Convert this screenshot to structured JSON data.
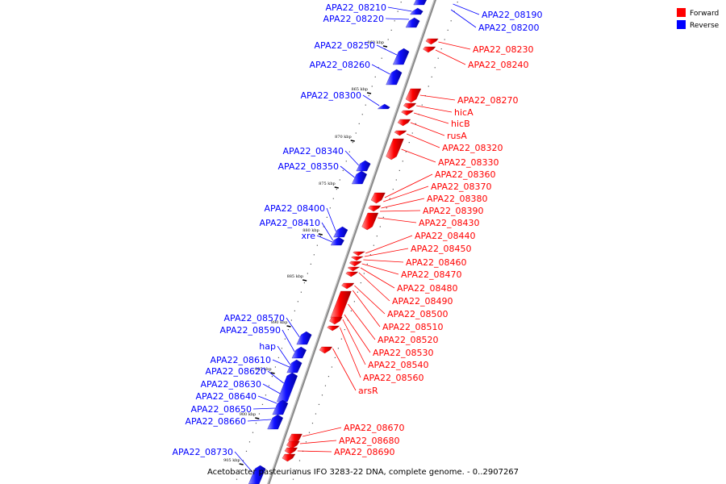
{
  "caption": "Acetobacter pasteurianus IFO 3283-22 DNA, complete genome. - 0..2907267",
  "legend": [
    {
      "label": "Forward",
      "color": "#ff0000"
    },
    {
      "label": "Reverse",
      "color": "#0000ff"
    }
  ],
  "colors": {
    "forward": "#ff0000",
    "reverse": "#0000ff",
    "backbone": "#888888"
  },
  "ticks": [
    "860 kbp",
    "865 kbp",
    "870 kbp",
    "875 kbp",
    "880 kbp",
    "885 kbp",
    "890 kbp",
    "895 kbp",
    "900 kbp",
    "905 kbp"
  ],
  "reverse_genes": [
    "APA22_08210",
    "APA22_08220",
    "APA22_08250",
    "APA22_08260",
    "APA22_08300",
    "APA22_08340",
    "APA22_08350",
    "APA22_08400",
    "APA22_08410",
    "xre",
    "APA22_08570",
    "APA22_08590",
    "hap",
    "APA22_08610",
    "APA22_08620",
    "APA22_08630",
    "APA22_08640",
    "APA22_08650",
    "APA22_08660",
    "APA22_08730"
  ],
  "right_reverse_genes": [
    "APA22_08190",
    "APA22_08200"
  ],
  "forward_genes": [
    "APA22_08230",
    "APA22_08240",
    "APA22_08270",
    "hicA",
    "hicB",
    "rusA",
    "APA22_08320",
    "APA22_08330",
    "APA22_08360",
    "APA22_08370",
    "APA22_08380",
    "APA22_08390",
    "APA22_08430",
    "APA22_08440",
    "APA22_08450",
    "APA22_08460",
    "APA22_08470",
    "APA22_08480",
    "APA22_08490",
    "APA22_08500",
    "APA22_08510",
    "APA22_08520",
    "APA22_08530",
    "APA22_08540",
    "APA22_08560",
    "arsR",
    "APA22_08670",
    "APA22_08680",
    "APA22_08690"
  ]
}
